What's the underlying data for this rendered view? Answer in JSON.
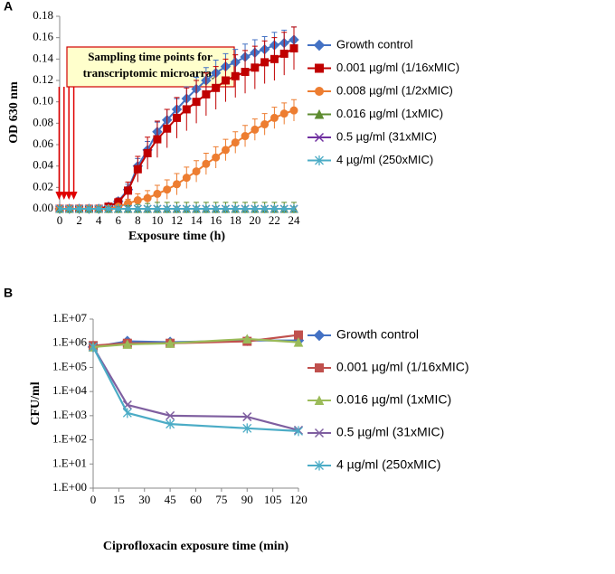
{
  "chart_data": [
    {
      "type": "line",
      "panel_label": "A",
      "ylabel": "OD 630 nm",
      "xlabel": "Exposure time (h)",
      "annotation": [
        "Sampling time points for",
        "transcriptomic microarray"
      ],
      "annotation_arrows_x": [
        0.5,
        1,
        1.5,
        2
      ],
      "x": [
        0,
        1,
        2,
        3,
        4,
        5,
        6,
        7,
        8,
        9,
        10,
        11,
        12,
        13,
        14,
        15,
        16,
        17,
        18,
        19,
        20,
        21,
        22,
        23,
        24
      ],
      "xlim": [
        0,
        24
      ],
      "xticks": [
        0,
        2,
        4,
        6,
        8,
        10,
        12,
        14,
        16,
        18,
        20,
        22,
        24
      ],
      "ylim": [
        0,
        0.18
      ],
      "yticks": [
        {
          "value": 0,
          "label": "0.00"
        },
        0.02,
        0.04,
        0.06,
        0.08,
        {
          "value": 0.1,
          "label": "0.10"
        },
        0.12,
        0.14,
        0.16,
        0.18
      ],
      "log_y": false,
      "legend": "right",
      "series": [
        {
          "name": "Growth control",
          "color": "#4472c4",
          "marker": "diamond",
          "values": [
            0,
            0,
            0,
            0,
            0,
            0.002,
            0.007,
            0.018,
            0.04,
            0.055,
            0.072,
            0.083,
            0.093,
            0.103,
            0.112,
            0.12,
            0.127,
            0.133,
            0.137,
            0.142,
            0.146,
            0.149,
            0.153,
            0.155,
            0.158
          ],
          "errors": [
            0,
            0,
            0,
            0,
            0,
            0.002,
            0.003,
            0.005,
            0.007,
            0.008,
            0.009,
            0.01,
            0.01,
            0.011,
            0.011,
            0.012,
            0.012,
            0.012,
            0.012,
            0.012,
            0.012,
            0.012,
            0.012,
            0.012,
            0.012
          ]
        },
        {
          "name": "0.001 µg/ml (1/16xMIC)",
          "color": "#c00000",
          "marker": "square",
          "values": [
            0,
            0,
            0,
            0,
            0,
            0.002,
            0.006,
            0.017,
            0.037,
            0.052,
            0.065,
            0.075,
            0.085,
            0.093,
            0.1,
            0.107,
            0.113,
            0.12,
            0.124,
            0.128,
            0.132,
            0.137,
            0.14,
            0.145,
            0.15
          ],
          "errors": [
            0,
            0,
            0,
            0,
            0,
            0.002,
            0.004,
            0.008,
            0.012,
            0.015,
            0.017,
            0.018,
            0.019,
            0.02,
            0.02,
            0.02,
            0.02,
            0.02,
            0.02,
            0.02,
            0.02,
            0.02,
            0.02,
            0.02,
            0.02
          ]
        },
        {
          "name": "0.008 µg/ml (1/2xMIC)",
          "color": "#ed7d31",
          "marker": "circle",
          "values": [
            0,
            0,
            0,
            0,
            0,
            0,
            0.002,
            0.005,
            0.008,
            0.01,
            0.014,
            0.018,
            0.023,
            0.029,
            0.035,
            0.042,
            0.048,
            0.055,
            0.062,
            0.068,
            0.074,
            0.079,
            0.085,
            0.089,
            0.092
          ],
          "errors": [
            0,
            0,
            0,
            0,
            0,
            0,
            0.002,
            0.004,
            0.006,
            0.007,
            0.008,
            0.009,
            0.01,
            0.01,
            0.01,
            0.01,
            0.01,
            0.01,
            0.01,
            0.01,
            0.01,
            0.01,
            0.01,
            0.01,
            0.01
          ]
        },
        {
          "name": "0.016 µg/ml (1xMIC)",
          "color": "#5e8c31",
          "marker": "triangle",
          "values": [
            0,
            0,
            0,
            0,
            0,
            0,
            0,
            0,
            0,
            0,
            0,
            0,
            0,
            0,
            0,
            0,
            0,
            0,
            0,
            0,
            0,
            0,
            0,
            0,
            0
          ],
          "errors": [
            0,
            0,
            0,
            0,
            0,
            0.001,
            0.002,
            0.003,
            0.004,
            0.005,
            0.006,
            0.006,
            0.006,
            0.006,
            0.006,
            0.006,
            0.006,
            0.006,
            0.006,
            0.006,
            0.006,
            0.006,
            0.006,
            0.006,
            0.006
          ]
        },
        {
          "name": "0.5 µg/ml (31xMIC)",
          "color": "#7030a0",
          "marker": "x",
          "values": [
            0,
            0,
            0,
            0,
            0,
            0,
            0,
            0,
            0,
            0,
            0,
            0,
            0,
            0,
            0,
            0,
            0,
            0,
            0,
            0,
            0,
            0,
            0,
            0,
            0
          ]
        },
        {
          "name": "4 µg/ml (250xMIC)",
          "color": "#4bacc6",
          "marker": "star",
          "values": [
            0,
            0,
            0,
            0,
            0,
            0,
            0,
            0,
            0,
            0,
            0,
            0,
            0,
            0,
            0,
            0,
            0,
            0,
            0,
            0,
            0,
            0,
            0,
            0,
            0
          ]
        }
      ]
    },
    {
      "type": "line",
      "panel_label": "B",
      "ylabel": "CFU/ml",
      "xlabel": "Ciprofloxacin exposure time (min)",
      "x": [
        0,
        20,
        45,
        90,
        120
      ],
      "xlim": [
        0,
        120
      ],
      "xticks": [
        0,
        15,
        30,
        45,
        60,
        75,
        90,
        105,
        120
      ],
      "ylim": [
        1,
        10000000
      ],
      "log_y": true,
      "legend": "right",
      "yticks": [
        {
          "value": 1,
          "label": "1.E+00"
        },
        {
          "value": 10,
          "label": "1.E+01"
        },
        {
          "value": 100,
          "label": "1.E+02"
        },
        {
          "value": 1000,
          "label": "1.E+03"
        },
        {
          "value": 10000,
          "label": "1.E+04"
        },
        {
          "value": 100000,
          "label": "1.E+05"
        },
        {
          "value": 1000000,
          "label": "1.E+06"
        },
        {
          "value": 10000000,
          "label": "1.E+07"
        }
      ],
      "series": [
        {
          "name": "Growth control",
          "color": "#4472c4",
          "marker": "diamond",
          "values": [
            700000,
            1200000,
            1100000,
            1300000,
            1300000
          ]
        },
        {
          "name": "0.001 µg/ml (1/16xMIC)",
          "color": "#c0504d",
          "marker": "square",
          "values": [
            800000,
            1000000,
            1000000,
            1200000,
            2200000
          ]
        },
        {
          "name": "0.016 µg/ml (1xMIC)",
          "color": "#9bbb59",
          "marker": "triangle",
          "values": [
            700000,
            900000,
            1000000,
            1500000,
            1100000
          ]
        },
        {
          "name": "0.5 µg/ml (31xMIC)",
          "color": "#7f5fa0",
          "marker": "x",
          "values": [
            700000,
            2800,
            1000,
            900,
            250
          ]
        },
        {
          "name": "4 µg/ml (250xMIC)",
          "color": "#4bacc6",
          "marker": "star",
          "values": [
            700000,
            1300,
            450,
            300,
            230
          ]
        }
      ]
    }
  ]
}
